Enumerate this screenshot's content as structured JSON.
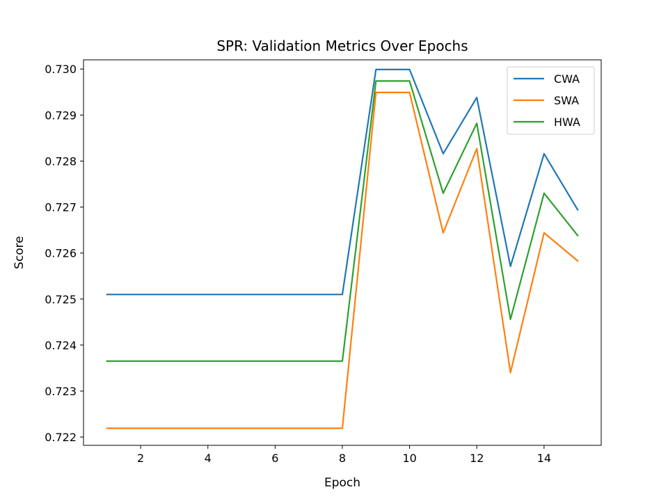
{
  "chart_data": {
    "type": "line",
    "title": "SPR: Validation Metrics Over Epochs",
    "xlabel": "Epoch",
    "ylabel": "Score",
    "xlim": [
      0.3,
      15.7
    ],
    "ylim": [
      0.72182,
      0.7302
    ],
    "xticks": [
      2,
      4,
      6,
      8,
      10,
      12,
      14
    ],
    "yticks": [
      0.722,
      0.723,
      0.724,
      0.725,
      0.726,
      0.727,
      0.728,
      0.729,
      0.73
    ],
    "ytick_labels": [
      "0.722",
      "0.723",
      "0.724",
      "0.725",
      "0.726",
      "0.727",
      "0.728",
      "0.729",
      "0.730"
    ],
    "grid": false,
    "legend_position": "top-right",
    "x": [
      1,
      2,
      3,
      4,
      5,
      6,
      7,
      8,
      9,
      10,
      11,
      12,
      13,
      14,
      15
    ],
    "series": [
      {
        "name": "CWA",
        "color": "#1f77b4",
        "values": [
          0.7251,
          0.7251,
          0.7251,
          0.7251,
          0.7251,
          0.7251,
          0.7251,
          0.7251,
          0.72999,
          0.72999,
          0.72816,
          0.72938,
          0.72571,
          0.72816,
          0.72694
        ]
      },
      {
        "name": "SWA",
        "color": "#ff7f0e",
        "values": [
          0.72219,
          0.72219,
          0.72219,
          0.72219,
          0.72219,
          0.72219,
          0.72219,
          0.72219,
          0.72949,
          0.72949,
          0.72644,
          0.72827,
          0.7234,
          0.72644,
          0.72583
        ]
      },
      {
        "name": "HWA",
        "color": "#2ca02c",
        "values": [
          0.72365,
          0.72365,
          0.72365,
          0.72365,
          0.72365,
          0.72365,
          0.72365,
          0.72365,
          0.72974,
          0.72974,
          0.7273,
          0.72882,
          0.72456,
          0.7273,
          0.72638
        ]
      }
    ]
  }
}
